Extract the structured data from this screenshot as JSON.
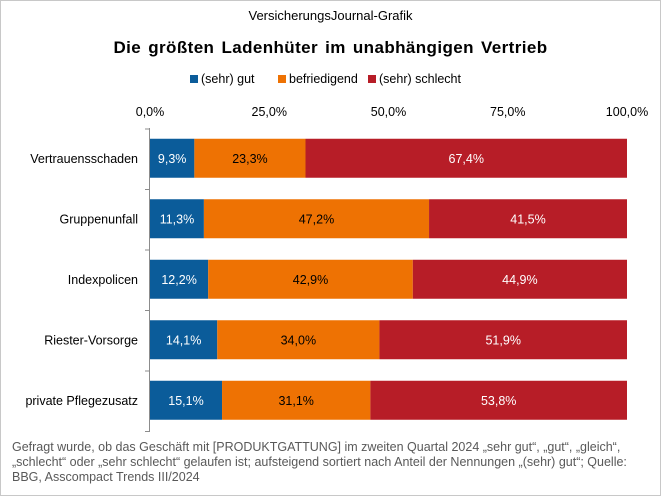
{
  "header": {
    "source_line": "VersicherungsJournal-Grafik",
    "title": "Die größten Ladenhüter im unabhängigen Vertrieb"
  },
  "footnote": "Gefragt wurde, ob das Geschäft mit [PRODUKTGATTUNG] im zweiten Quartal 2024 „sehr gut“, „gut“, „gleich“, „schlecht“ oder „sehr schlecht“ gelaufen ist; aufsteigend sortiert nach Anteil der Nennungen „(sehr) gut“; Quelle: BBG, Asscompact Trends III/2024",
  "chart_data": {
    "type": "bar",
    "orientation": "horizontal",
    "stacked": true,
    "categories": [
      "Vertrauensschaden",
      "Gruppenunfall",
      "Indexpolicen",
      "Riester-Vorsorge",
      "private Pflegezusatz"
    ],
    "series": [
      {
        "name": "(sehr) gut",
        "color": "#0b5c9a",
        "values": [
          9.3,
          11.3,
          12.2,
          14.1,
          15.1
        ],
        "labels": [
          "9,3%",
          "11,3%",
          "12,2%",
          "14,1%",
          "15,1%"
        ]
      },
      {
        "name": "befriedigend",
        "color": "#ee7203",
        "values": [
          23.3,
          47.2,
          42.9,
          34.0,
          31.1
        ],
        "labels": [
          "23,3%",
          "47,2%",
          "42,9%",
          "34,0%",
          "31,1%"
        ]
      },
      {
        "name": "(sehr) schlecht",
        "color": "#b71d27",
        "values": [
          67.4,
          41.5,
          44.9,
          51.9,
          53.8
        ],
        "labels": [
          "67,4%",
          "41,5%",
          "44,9%",
          "51,9%",
          "53,8%"
        ]
      }
    ],
    "xlim": [
      0,
      100
    ],
    "x_ticks": [
      0,
      25,
      50,
      75,
      100
    ],
    "x_tick_labels": [
      "0,0%",
      "25,0%",
      "50,0%",
      "75,0%",
      "100,0%"
    ],
    "x_axis_position": "top",
    "legend_position": "top",
    "grid": false
  }
}
